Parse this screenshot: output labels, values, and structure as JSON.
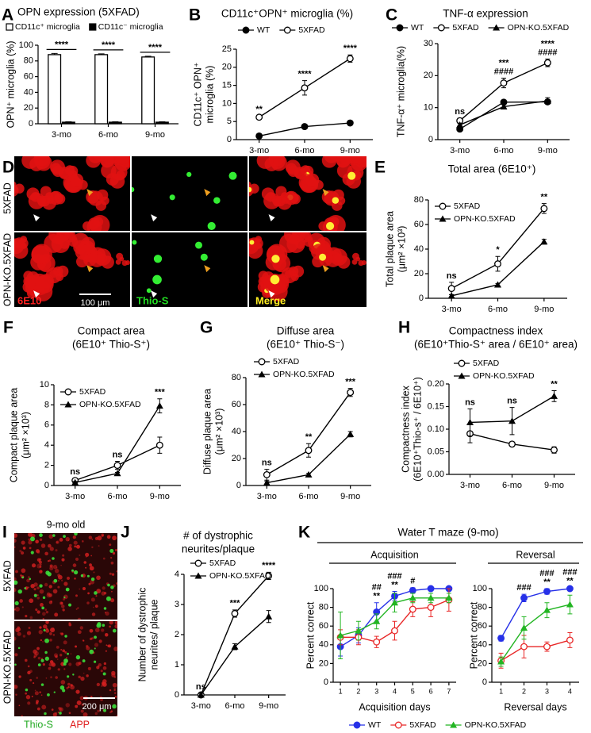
{
  "chart_data": [
    {
      "panel": "A",
      "type": "bar",
      "title": "OPN expression (5XFAD)",
      "ylabel": "OPN⁺ microglia (%)",
      "categories": [
        "3-mo",
        "6-mo",
        "9-mo"
      ],
      "series": [
        {
          "name": "CD11c⁺ microglia",
          "color": "#ffffff",
          "edgecolor": "#000000",
          "values": [
            88,
            88,
            85
          ],
          "errors": [
            1.5,
            1,
            1
          ]
        },
        {
          "name": "CD11c⁻ microglia",
          "color": "#000000",
          "edgecolor": "#000000",
          "values": [
            2,
            2,
            2
          ],
          "errors": [
            0.5,
            0.5,
            0.5
          ]
        }
      ],
      "ylim": [
        0,
        100
      ],
      "yticks": [
        0,
        20,
        40,
        60,
        80,
        100
      ],
      "legend": "top",
      "annotations": [
        {
          "category": "3-mo",
          "text": [
            "****"
          ]
        },
        {
          "category": "6-mo",
          "text": [
            "****"
          ]
        },
        {
          "category": "9-mo",
          "text": [
            "****"
          ]
        }
      ]
    },
    {
      "panel": "B",
      "type": "line",
      "title": "CD11c⁺OPN⁺ microglia (%)",
      "ylabel": [
        "CD11c⁺ OPN⁺",
        "microglia (%)"
      ],
      "categories": [
        "3-mo",
        "6-mo",
        "9-mo"
      ],
      "series": [
        {
          "name": "WT",
          "color": "#000000",
          "marker": "circle",
          "values": [
            1.0,
            3.6,
            4.6
          ],
          "errors": [
            0.2,
            0.6,
            0.6
          ]
        },
        {
          "name": "5XFAD",
          "color": "#000000",
          "marker": "circle-open",
          "values": [
            6.2,
            14.3,
            22.4
          ],
          "errors": [
            0.4,
            2,
            1
          ]
        }
      ],
      "ylim": [
        0,
        25
      ],
      "yticks": [
        0,
        5,
        10,
        15,
        20,
        25
      ],
      "legend": "top",
      "annotations": [
        {
          "category": "3-mo",
          "text": [
            "**"
          ]
        },
        {
          "category": "6-mo",
          "text": [
            "****"
          ]
        },
        {
          "category": "9-mo",
          "text": [
            "****"
          ]
        }
      ]
    },
    {
      "panel": "C",
      "type": "line",
      "title": "TNF-α expression",
      "ylabel": "TNF-α⁺ microglia(%)",
      "categories": [
        "3-mo",
        "6-mo",
        "9-mo"
      ],
      "series": [
        {
          "name": "WT",
          "color": "#000000",
          "marker": "circle",
          "values": [
            3.3,
            11.7,
            11.8
          ],
          "errors": [
            0.4,
            0.6,
            0.6
          ]
        },
        {
          "name": "5XFAD",
          "color": "#000000",
          "marker": "circle-open",
          "values": [
            5.9,
            17.7,
            24.0
          ],
          "errors": [
            0.8,
            1.5,
            1.2
          ]
        },
        {
          "name": "OPN-KO.5XFAD",
          "color": "#000000",
          "marker": "triangle",
          "values": [
            4.6,
            10.3,
            12.1
          ],
          "errors": [
            0.5,
            0.7,
            1
          ]
        }
      ],
      "ylim": [
        0,
        30
      ],
      "yticks": [
        0,
        10,
        20,
        30
      ],
      "legend": "top",
      "annotations": [
        {
          "category": "3-mo",
          "text": [
            "ns"
          ]
        },
        {
          "category": "6-mo",
          "text": [
            "***",
            "####"
          ]
        },
        {
          "category": "9-mo",
          "text": [
            "****",
            "####"
          ]
        }
      ]
    },
    {
      "panel": "E",
      "type": "line",
      "title": "Total area (6E10⁺)",
      "ylabel": [
        "Total plaque area",
        "(μm² ×10³)"
      ],
      "categories": [
        "3-mo",
        "6-mo",
        "9-mo"
      ],
      "series": [
        {
          "name": "5XFAD",
          "color": "#000000",
          "marker": "circle-open",
          "values": [
            8,
            28,
            73
          ],
          "errors": [
            5,
            6,
            4
          ]
        },
        {
          "name": "OPN-KO.5XFAD",
          "color": "#000000",
          "marker": "triangle",
          "values": [
            2,
            11,
            46
          ],
          "errors": [
            1,
            1,
            2
          ]
        }
      ],
      "ylim": [
        0,
        80
      ],
      "yticks": [
        0,
        20,
        40,
        60,
        80
      ],
      "legend": "upper-left",
      "annotations": [
        {
          "category": "3-mo",
          "text": [
            "ns"
          ]
        },
        {
          "category": "6-mo",
          "text": [
            "*"
          ]
        },
        {
          "category": "9-mo",
          "text": [
            "**"
          ]
        }
      ]
    },
    {
      "panel": "F",
      "type": "line",
      "title": "Compact area",
      "subtitle": "(6E10⁺ Thio-S⁺)",
      "ylabel": [
        "Compact plaque area",
        "(μm² ×10³)"
      ],
      "categories": [
        "3-mo",
        "6-mo",
        "9-mo"
      ],
      "series": [
        {
          "name": "5XFAD",
          "color": "#000000",
          "marker": "circle-open",
          "values": [
            0.5,
            2.0,
            4.0
          ],
          "errors": [
            0.2,
            0.4,
            0.8
          ]
        },
        {
          "name": "OPN-KO.5XFAD",
          "color": "#000000",
          "marker": "triangle",
          "values": [
            0.3,
            1.2,
            7.9
          ],
          "errors": [
            0.1,
            0.1,
            0.7
          ]
        }
      ],
      "ylim": [
        0,
        10
      ],
      "yticks": [
        0,
        2,
        4,
        6,
        8,
        10
      ],
      "legend": "upper-left",
      "annotations": [
        {
          "category": "3-mo",
          "text": [
            "ns"
          ]
        },
        {
          "category": "6-mo",
          "text": [
            "ns"
          ]
        },
        {
          "category": "9-mo",
          "text": [
            "***"
          ]
        }
      ]
    },
    {
      "panel": "G",
      "type": "line",
      "title": "Diffuse area",
      "subtitle": "(6E10⁺ Thio-S⁻)",
      "ylabel": [
        "Diffuse plaque area",
        "(μm² ×10³)"
      ],
      "categories": [
        "3-mo",
        "6-mo",
        "9-mo"
      ],
      "series": [
        {
          "name": "5XFAD",
          "color": "#000000",
          "marker": "circle-open",
          "values": [
            8,
            26,
            69
          ],
          "errors": [
            4,
            5,
            3
          ]
        },
        {
          "name": "OPN-KO.5XFAD",
          "color": "#000000",
          "marker": "triangle",
          "values": [
            2,
            8,
            38
          ],
          "errors": [
            1,
            1,
            2
          ]
        }
      ],
      "ylim": [
        0,
        80
      ],
      "yticks": [
        0,
        20,
        40,
        60,
        80
      ],
      "legend": "upper-left",
      "annotations": [
        {
          "category": "3-mo",
          "text": [
            "ns"
          ]
        },
        {
          "category": "6-mo",
          "text": [
            "**"
          ]
        },
        {
          "category": "9-mo",
          "text": [
            "***"
          ]
        }
      ]
    },
    {
      "panel": "H",
      "type": "line",
      "title": "Compactness index",
      "subtitle": "(6E10⁺Thio-S⁺ area / 6E10⁺ area)",
      "ylabel": [
        "Compactness index",
        "(6E10⁺Thio-s⁺ / 6E10⁺)"
      ],
      "categories": [
        "3-mo",
        "6-mo",
        "9-mo"
      ],
      "series": [
        {
          "name": "5XFAD",
          "color": "#000000",
          "marker": "circle-open",
          "values": [
            0.09,
            0.067,
            0.054
          ],
          "errors": [
            0.02,
            0.005,
            0.007
          ]
        },
        {
          "name": "OPN-KO.5XFAD",
          "color": "#000000",
          "marker": "triangle",
          "values": [
            0.115,
            0.118,
            0.173
          ],
          "errors": [
            0.03,
            0.03,
            0.012
          ]
        }
      ],
      "ylim": [
        0,
        0.2
      ],
      "yticks": [
        {
          "value": 0,
          "label": "0.00"
        },
        {
          "value": 0.05,
          "label": "0.05"
        },
        {
          "value": 0.1,
          "label": "0.10"
        },
        {
          "value": 0.15,
          "label": "0.15"
        },
        {
          "value": 0.2,
          "label": "0.20"
        }
      ],
      "legend": "upper-left",
      "annotations": [
        {
          "category": "3-mo",
          "text": [
            "ns"
          ]
        },
        {
          "category": "6-mo",
          "text": [
            "ns"
          ]
        },
        {
          "category": "9-mo",
          "text": [
            "**"
          ]
        }
      ]
    },
    {
      "panel": "J",
      "type": "line",
      "title": [
        "# of dystrophic",
        "neurites/plaque"
      ],
      "ylabel": [
        "Number of dystrophic",
        "neurites/ plaque"
      ],
      "categories": [
        "3-mo",
        "6-mo",
        "9-mo"
      ],
      "series": [
        {
          "name": "5XFAD",
          "color": "#000000",
          "marker": "circle-open",
          "values": [
            0,
            2.7,
            3.95
          ],
          "errors": [
            0.05,
            0.12,
            0.12
          ]
        },
        {
          "name": "OPN-KO.5XFAD",
          "color": "#000000",
          "marker": "triangle",
          "values": [
            0,
            1.6,
            2.6
          ],
          "errors": [
            0.05,
            0.1,
            0.2
          ]
        }
      ],
      "ylim": [
        0,
        4
      ],
      "yticks": [
        0,
        1,
        2,
        3,
        4
      ],
      "legend": "upper-left",
      "annotations": [
        {
          "category": "3-mo",
          "text": [
            "ns"
          ]
        },
        {
          "category": "6-mo",
          "text": [
            "***"
          ]
        },
        {
          "category": "9-mo",
          "text": [
            "****"
          ]
        }
      ]
    },
    {
      "panel": "K",
      "type": "line",
      "title": "Water T maze (9-mo)",
      "ylim": [
        0,
        100
      ],
      "yticks": [
        0,
        20,
        40,
        60,
        80,
        100
      ],
      "legend": "bottom",
      "subplots": [
        {
          "subtitle": "Acquisition",
          "ylabel": "Percent correct",
          "xlabel": "Acquisition days",
          "x": [
            1,
            2,
            3,
            4,
            5,
            6,
            7
          ],
          "xlim": [
            0.6,
            7.4
          ],
          "xticks": [
            1,
            2,
            3,
            4,
            5,
            6,
            7
          ],
          "series": [
            {
              "name": "WT",
              "color": "#2630e8",
              "marker": "circle",
              "values": [
                38,
                50,
                75,
                92,
                98,
                100,
                100
              ],
              "errors": [
                10,
                8,
                10,
                5,
                3,
                2,
                2
              ]
            },
            {
              "name": "5XFAD",
              "color": "#e82626",
              "marker": "circle-open",
              "values": [
                48,
                48,
                43,
                55,
                78,
                80,
                88
              ],
              "errors": [
                8,
                8,
                6,
                10,
                8,
                10,
                12
              ]
            },
            {
              "name": "OPN-KO.5XFAD",
              "color": "#22b522",
              "marker": "triangle",
              "values": [
                50,
                55,
                65,
                85,
                90,
                90,
                90
              ],
              "errors": [
                25,
                10,
                8,
                10,
                5,
                5,
                5
              ]
            }
          ],
          "annotations": [
            {
              "x": 3,
              "text": [
                "##",
                "**"
              ]
            },
            {
              "x": 4,
              "text": [
                "###",
                "**"
              ]
            },
            {
              "x": 5,
              "text": [
                "#"
              ]
            }
          ]
        },
        {
          "subtitle": "Reversal",
          "ylabel": "Percent correct",
          "xlabel": "Reversal days",
          "x": [
            1,
            2,
            3,
            4
          ],
          "xlim": [
            0.6,
            4.4
          ],
          "xticks": [
            1,
            2,
            3,
            4
          ],
          "series": [
            {
              "color": "#2630e8",
              "marker": "circle",
              "values": [
                47,
                90,
                97,
                100
              ],
              "errors": [
                3,
                4,
                3,
                1
              ]
            },
            {
              "color": "#e82626",
              "marker": "circle-open",
              "values": [
                23,
                38,
                38,
                45
              ],
              "errors": [
                8,
                12,
                5,
                8
              ]
            },
            {
              "color": "#22b522",
              "marker": "triangle",
              "values": [
                22,
                58,
                77,
                83
              ],
              "errors": [
                5,
                12,
                8,
                10
              ]
            }
          ],
          "annotations": [
            {
              "x": 2,
              "text": [
                "###"
              ]
            },
            {
              "x": 3,
              "text": [
                "###",
                "**"
              ]
            },
            {
              "x": 4,
              "text": [
                "###",
                "**"
              ]
            }
          ]
        }
      ]
    }
  ],
  "figure_panels": {
    "D": {
      "panel": "D",
      "rows": [
        "5XFAD",
        "OPN-KO.5XFAD"
      ],
      "channels": [
        "6E10",
        "Thio-S",
        "Merge"
      ],
      "scale_bar": "100 μm"
    },
    "I": {
      "panel": "I",
      "title": "9-mo old",
      "rows": [
        "5XFAD",
        "OPN-KO.5XFAD"
      ],
      "scale_bar": "200 μm",
      "channels": [
        "Thio-S",
        "APP"
      ]
    }
  }
}
